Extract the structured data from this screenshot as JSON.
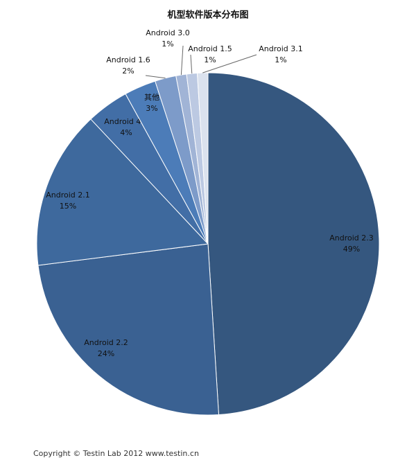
{
  "chart_data": {
    "type": "pie",
    "title": "机型软件版本分布图",
    "categories": [
      "Android 2.3",
      "Android 2.2",
      "Android 2.1",
      "Android 4.0",
      "其他",
      "Android 1.6",
      "Android 3.0",
      "Android 1.5",
      "Android 3.1"
    ],
    "values": [
      49,
      24,
      15,
      4,
      3,
      2,
      1,
      1,
      1
    ],
    "value_labels": [
      "49%",
      "24%",
      "15%",
      "4%",
      "3%",
      "2%",
      "1%",
      "1%",
      "1%"
    ],
    "colors": [
      "#35577f",
      "#3a6192",
      "#3e699d",
      "#426ea6",
      "#4c7cb8",
      "#7d9bc9",
      "#a1b4d6",
      "#bcc9e2",
      "#dbe2ee"
    ]
  },
  "footer": "Copyright © Testin Lab 2012   www.testin.cn"
}
